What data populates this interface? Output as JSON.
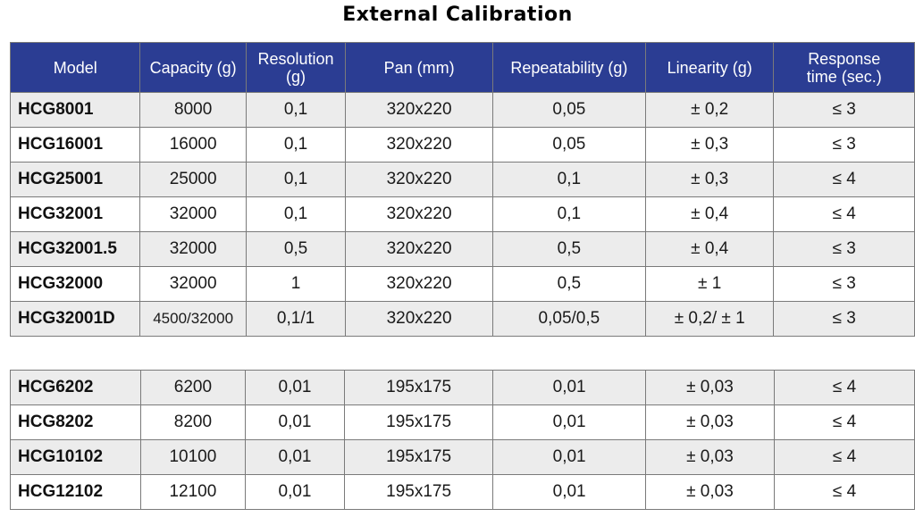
{
  "title": "External Calibration",
  "headers": [
    "Model",
    "Capacity (g)",
    "Resolution (g)",
    "Pan (mm)",
    "Repeatability (g)",
    "Linearity (g)",
    "Response time (sec.)"
  ],
  "header_lines": {
    "resolution": [
      "Resolution",
      "(g)"
    ],
    "response": [
      "Response",
      "time (sec.)"
    ]
  },
  "group1": [
    [
      "HCG8001",
      "8000",
      "0,1",
      "320x220",
      "0,05",
      "± 0,2",
      "≤ 3"
    ],
    [
      "HCG16001",
      "16000",
      "0,1",
      "320x220",
      "0,05",
      "± 0,3",
      "≤ 3"
    ],
    [
      "HCG25001",
      "25000",
      "0,1",
      "320x220",
      "0,1",
      "± 0,3",
      "≤ 4"
    ],
    [
      "HCG32001",
      "32000",
      "0,1",
      "320x220",
      "0,1",
      "± 0,4",
      "≤ 4"
    ],
    [
      "HCG32001.5",
      "32000",
      "0,5",
      "320x220",
      "0,5",
      "± 0,4",
      "≤ 3"
    ],
    [
      "HCG32000",
      "32000",
      "1",
      "320x220",
      "0,5",
      "± 1",
      "≤ 3"
    ],
    [
      "HCG32001D",
      "4500/32000",
      "0,1/1",
      "320x220",
      "0,05/0,5",
      "± 0,2/ ± 1",
      "≤ 3"
    ]
  ],
  "group2": [
    [
      "HCG6202",
      "6200",
      "0,01",
      "195x175",
      "0,01",
      "± 0,03",
      "≤ 4"
    ],
    [
      "HCG8202",
      "8200",
      "0,01",
      "195x175",
      "0,01",
      "± 0,03",
      "≤ 4"
    ],
    [
      "HCG10102",
      "10100",
      "0,01",
      "195x175",
      "0,01",
      "± 0,03",
      "≤ 4"
    ],
    [
      "HCG12102",
      "12100",
      "0,01",
      "195x175",
      "0,01",
      "± 0,03",
      "≤ 4"
    ]
  ],
  "colors": {
    "header_bg": "#2b3d93",
    "header_text": "#ffffff",
    "row_shaded": "#ececec",
    "row_plain": "#ffffff",
    "border": "#7a7a7a"
  }
}
